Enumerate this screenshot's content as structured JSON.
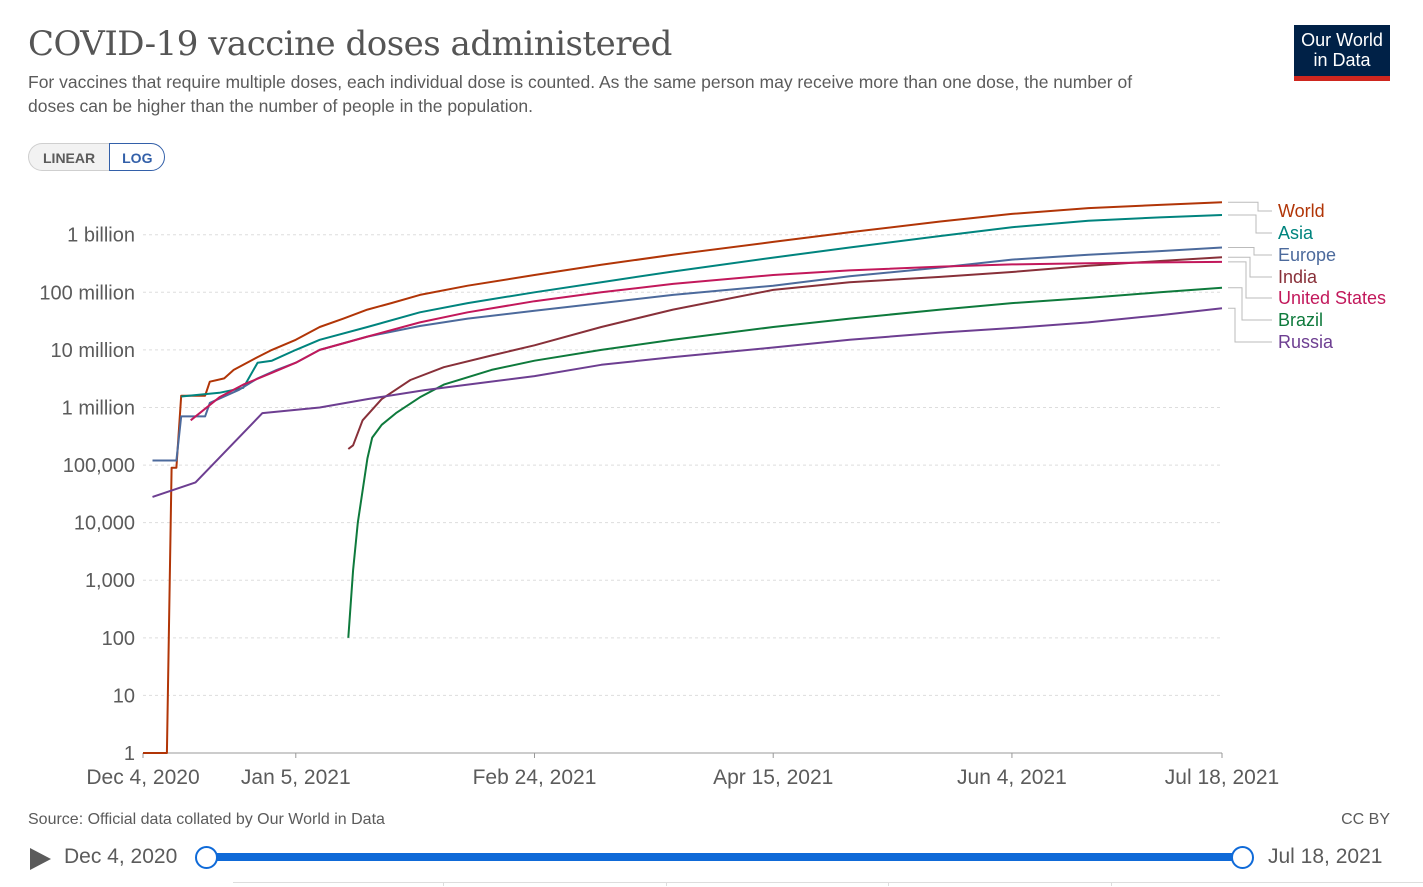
{
  "header": {
    "title": "COVID-19 vaccine doses administered",
    "subtitle": "For vaccines that require multiple doses, each individual dose is counted. As the same person may receive more than one dose, the number of doses can be higher than the number of people in the population.",
    "logo_line1": "Our World",
    "logo_line2": "in Data"
  },
  "controls": {
    "linear_label": "LINEAR",
    "log_label": "LOG",
    "selected": "LOG"
  },
  "footer": {
    "source": "Source: Official data collated by Our World in Data",
    "license": "CC BY"
  },
  "timeline": {
    "start_label": "Dec 4, 2020",
    "end_label": "Jul 18, 2021",
    "start_position": 0,
    "end_position": 1
  },
  "chart_data": {
    "type": "line",
    "yscale": "log",
    "grid": "horizontal dashed",
    "legend_placement": "right",
    "x_range": [
      "2020-12-04",
      "2021-07-18"
    ],
    "ylim": [
      1,
      3700000000
    ],
    "x_ticks": [
      {
        "date": "2020-12-04",
        "label": "Dec 4, 2020"
      },
      {
        "date": "2021-01-05",
        "label": "Jan 5, 2021"
      },
      {
        "date": "2021-02-24",
        "label": "Feb 24, 2021"
      },
      {
        "date": "2021-04-15",
        "label": "Apr 15, 2021"
      },
      {
        "date": "2021-06-04",
        "label": "Jun 4, 2021"
      },
      {
        "date": "2021-07-18",
        "label": "Jul 18, 2021"
      }
    ],
    "y_ticks": [
      {
        "value": 1,
        "label": "1"
      },
      {
        "value": 10,
        "label": "10"
      },
      {
        "value": 100,
        "label": "100"
      },
      {
        "value": 1000,
        "label": "1,000"
      },
      {
        "value": 10000,
        "label": "10,000"
      },
      {
        "value": 100000,
        "label": "100,000"
      },
      {
        "value": 1000000,
        "label": "1 million"
      },
      {
        "value": 10000000,
        "label": "10 million"
      },
      {
        "value": 100000000,
        "label": "100 million"
      },
      {
        "value": 1000000000,
        "label": "1 billion"
      }
    ],
    "series": [
      {
        "name": "World",
        "color": "#b13507",
        "points": [
          [
            "2020-12-04",
            1
          ],
          [
            "2020-12-09",
            1
          ],
          [
            "2020-12-10",
            90000
          ],
          [
            "2020-12-11",
            90000
          ],
          [
            "2020-12-12",
            1600000
          ],
          [
            "2020-12-15",
            1600000
          ],
          [
            "2020-12-17",
            1600000
          ],
          [
            "2020-12-18",
            2800000
          ],
          [
            "2020-12-21",
            3200000
          ],
          [
            "2020-12-23",
            4500000
          ],
          [
            "2020-12-25",
            5500000
          ],
          [
            "2020-12-28",
            7500000
          ],
          [
            "2020-12-31",
            10000000
          ],
          [
            "2021-01-05",
            15000000
          ],
          [
            "2021-01-10",
            25000000
          ],
          [
            "2021-01-15",
            35000000
          ],
          [
            "2021-01-20",
            50000000
          ],
          [
            "2021-01-25",
            65000000
          ],
          [
            "2021-01-31",
            90000000
          ],
          [
            "2021-02-10",
            130000000
          ],
          [
            "2021-02-24",
            200000000
          ],
          [
            "2021-03-10",
            300000000
          ],
          [
            "2021-03-25",
            450000000
          ],
          [
            "2021-04-15",
            750000000
          ],
          [
            "2021-05-01",
            1100000000
          ],
          [
            "2021-05-20",
            1700000000
          ],
          [
            "2021-06-04",
            2300000000
          ],
          [
            "2021-06-20",
            2900000000
          ],
          [
            "2021-07-05",
            3300000000
          ],
          [
            "2021-07-18",
            3650000000
          ]
        ]
      },
      {
        "name": "Asia",
        "color": "#00847e",
        "points": [
          [
            "2020-12-12",
            1550000
          ],
          [
            "2020-12-20",
            1800000
          ],
          [
            "2020-12-25",
            2200000
          ],
          [
            "2020-12-28",
            6000000
          ],
          [
            "2020-12-31",
            6500000
          ],
          [
            "2021-01-05",
            10000000
          ],
          [
            "2021-01-10",
            15000000
          ],
          [
            "2021-01-20",
            25000000
          ],
          [
            "2021-01-31",
            45000000
          ],
          [
            "2021-02-10",
            65000000
          ],
          [
            "2021-02-24",
            100000000
          ],
          [
            "2021-03-10",
            150000000
          ],
          [
            "2021-03-25",
            230000000
          ],
          [
            "2021-04-15",
            400000000
          ],
          [
            "2021-05-01",
            600000000
          ],
          [
            "2021-05-20",
            950000000
          ],
          [
            "2021-06-04",
            1350000000
          ],
          [
            "2021-06-20",
            1750000000
          ],
          [
            "2021-07-05",
            2000000000
          ],
          [
            "2021-07-18",
            2200000000
          ]
        ]
      },
      {
        "name": "Europe",
        "color": "#4c6a9c",
        "points": [
          [
            "2020-12-06",
            120000
          ],
          [
            "2020-12-11",
            120000
          ],
          [
            "2020-12-12",
            700000
          ],
          [
            "2020-12-17",
            700000
          ],
          [
            "2020-12-18",
            1200000
          ],
          [
            "2020-12-24",
            2000000
          ],
          [
            "2020-12-28",
            3200000
          ],
          [
            "2021-01-01",
            4500000
          ],
          [
            "2021-01-05",
            6000000
          ],
          [
            "2021-01-10",
            10000000
          ],
          [
            "2021-01-20",
            17000000
          ],
          [
            "2021-01-31",
            26000000
          ],
          [
            "2021-02-10",
            35000000
          ],
          [
            "2021-02-24",
            48000000
          ],
          [
            "2021-03-10",
            65000000
          ],
          [
            "2021-03-25",
            90000000
          ],
          [
            "2021-04-15",
            130000000
          ],
          [
            "2021-05-01",
            190000000
          ],
          [
            "2021-05-20",
            270000000
          ],
          [
            "2021-06-04",
            370000000
          ],
          [
            "2021-06-20",
            450000000
          ],
          [
            "2021-07-05",
            520000000
          ],
          [
            "2021-07-18",
            600000000
          ]
        ]
      },
      {
        "name": "India",
        "color": "#883039",
        "points": [
          [
            "2021-01-16",
            190000
          ],
          [
            "2021-01-17",
            220000
          ],
          [
            "2021-01-19",
            600000
          ],
          [
            "2021-01-23",
            1400000
          ],
          [
            "2021-01-29",
            3000000
          ],
          [
            "2021-02-05",
            5000000
          ],
          [
            "2021-02-15",
            8000000
          ],
          [
            "2021-02-24",
            12000000
          ],
          [
            "2021-03-10",
            25000000
          ],
          [
            "2021-03-25",
            50000000
          ],
          [
            "2021-04-15",
            110000000
          ],
          [
            "2021-05-01",
            150000000
          ],
          [
            "2021-05-20",
            185000000
          ],
          [
            "2021-06-04",
            225000000
          ],
          [
            "2021-06-20",
            290000000
          ],
          [
            "2021-07-05",
            350000000
          ],
          [
            "2021-07-18",
            405000000
          ]
        ]
      },
      {
        "name": "United States",
        "color": "#c2185b",
        "points": [
          [
            "2020-12-14",
            600000
          ],
          [
            "2020-12-20",
            1500000
          ],
          [
            "2020-12-25",
            2500000
          ],
          [
            "2020-12-31",
            4000000
          ],
          [
            "2021-01-05",
            6000000
          ],
          [
            "2021-01-10",
            10000000
          ],
          [
            "2021-01-20",
            17000000
          ],
          [
            "2021-01-31",
            30000000
          ],
          [
            "2021-02-10",
            45000000
          ],
          [
            "2021-02-24",
            70000000
          ],
          [
            "2021-03-10",
            100000000
          ],
          [
            "2021-03-25",
            140000000
          ],
          [
            "2021-04-15",
            200000000
          ],
          [
            "2021-05-01",
            240000000
          ],
          [
            "2021-05-20",
            280000000
          ],
          [
            "2021-06-04",
            305000000
          ],
          [
            "2021-06-20",
            320000000
          ],
          [
            "2021-07-05",
            330000000
          ],
          [
            "2021-07-18",
            337000000
          ]
        ]
      },
      {
        "name": "Brazil",
        "color": "#0e7a3c",
        "points": [
          [
            "2021-01-16",
            100
          ],
          [
            "2021-01-17",
            1500
          ],
          [
            "2021-01-18",
            10000
          ],
          [
            "2021-01-20",
            130000
          ],
          [
            "2021-01-21",
            300000
          ],
          [
            "2021-01-23",
            500000
          ],
          [
            "2021-01-26",
            800000
          ],
          [
            "2021-01-31",
            1500000
          ],
          [
            "2021-02-05",
            2500000
          ],
          [
            "2021-02-15",
            4500000
          ],
          [
            "2021-02-24",
            6500000
          ],
          [
            "2021-03-10",
            10000000
          ],
          [
            "2021-03-25",
            15000000
          ],
          [
            "2021-04-15",
            25000000
          ],
          [
            "2021-05-01",
            35000000
          ],
          [
            "2021-05-20",
            50000000
          ],
          [
            "2021-06-04",
            65000000
          ],
          [
            "2021-06-20",
            80000000
          ],
          [
            "2021-07-05",
            100000000
          ],
          [
            "2021-07-18",
            120000000
          ]
        ]
      },
      {
        "name": "Russia",
        "color": "#6d3e91",
        "points": [
          [
            "2020-12-06",
            28000
          ],
          [
            "2020-12-15",
            50000
          ],
          [
            "2020-12-29",
            800000
          ],
          [
            "2021-01-10",
            1000000
          ],
          [
            "2021-01-20",
            1400000
          ],
          [
            "2021-02-01",
            2000000
          ],
          [
            "2021-02-24",
            3500000
          ],
          [
            "2021-03-10",
            5500000
          ],
          [
            "2021-03-25",
            7500000
          ],
          [
            "2021-04-15",
            11000000
          ],
          [
            "2021-05-01",
            15000000
          ],
          [
            "2021-05-20",
            20000000
          ],
          [
            "2021-06-04",
            24000000
          ],
          [
            "2021-06-20",
            30000000
          ],
          [
            "2021-07-05",
            40000000
          ],
          [
            "2021-07-18",
            53000000
          ]
        ]
      }
    ]
  }
}
